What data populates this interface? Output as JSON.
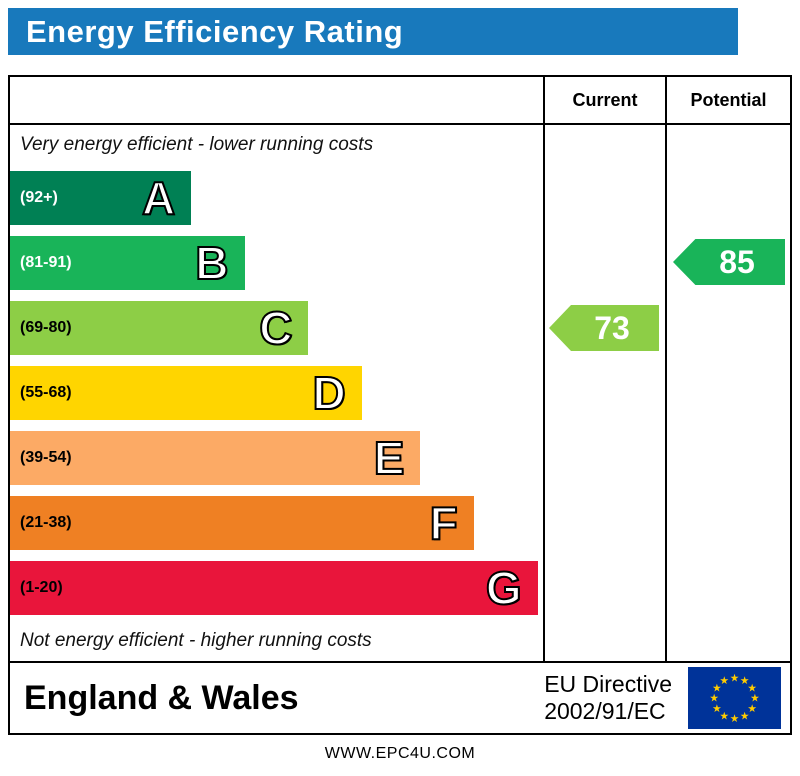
{
  "title": "Energy Efficiency Rating",
  "columns": {
    "current": "Current",
    "potential": "Potential"
  },
  "chart_data": {
    "type": "bar",
    "subtype": "epc-energy-efficiency-rating",
    "top_note": "Very energy efficient - lower running costs",
    "bottom_note": "Not energy efficient - higher running costs",
    "bands": [
      {
        "letter": "A",
        "range": "(92+)",
        "min": 92,
        "max": 100,
        "color": "#008054",
        "range_color": "#ffffff",
        "width_pct": 34
      },
      {
        "letter": "B",
        "range": "(81-91)",
        "min": 81,
        "max": 91,
        "color": "#19b459",
        "range_color": "#ffffff",
        "width_pct": 44
      },
      {
        "letter": "C",
        "range": "(69-80)",
        "min": 69,
        "max": 80,
        "color": "#8dce46",
        "range_color": "#000000",
        "width_pct": 56
      },
      {
        "letter": "D",
        "range": "(55-68)",
        "min": 55,
        "max": 68,
        "color": "#ffd500",
        "range_color": "#000000",
        "width_pct": 66
      },
      {
        "letter": "E",
        "range": "(39-54)",
        "min": 39,
        "max": 54,
        "color": "#fcaa65",
        "range_color": "#000000",
        "width_pct": 77
      },
      {
        "letter": "F",
        "range": "(21-38)",
        "min": 21,
        "max": 38,
        "color": "#ef8023",
        "range_color": "#000000",
        "width_pct": 87
      },
      {
        "letter": "G",
        "range": "(1-20)",
        "min": 1,
        "max": 20,
        "color": "#e9153b",
        "range_color": "#000000",
        "width_pct": 99
      }
    ],
    "current": {
      "value": 73,
      "band": "C",
      "color": "#8dce46"
    },
    "potential": {
      "value": 85,
      "band": "B",
      "color": "#19b459"
    }
  },
  "footer": {
    "region": "England & Wales",
    "directive_line1": "EU Directive",
    "directive_line2": "2002/91/EC",
    "eu_flag": {
      "background": "#003399",
      "star_color": "#ffcc00"
    }
  },
  "watermark": "WWW.EPC4U.COM",
  "theme": {
    "header_bg": "#1879bc",
    "header_text": "#ffffff",
    "border": "#000000"
  }
}
